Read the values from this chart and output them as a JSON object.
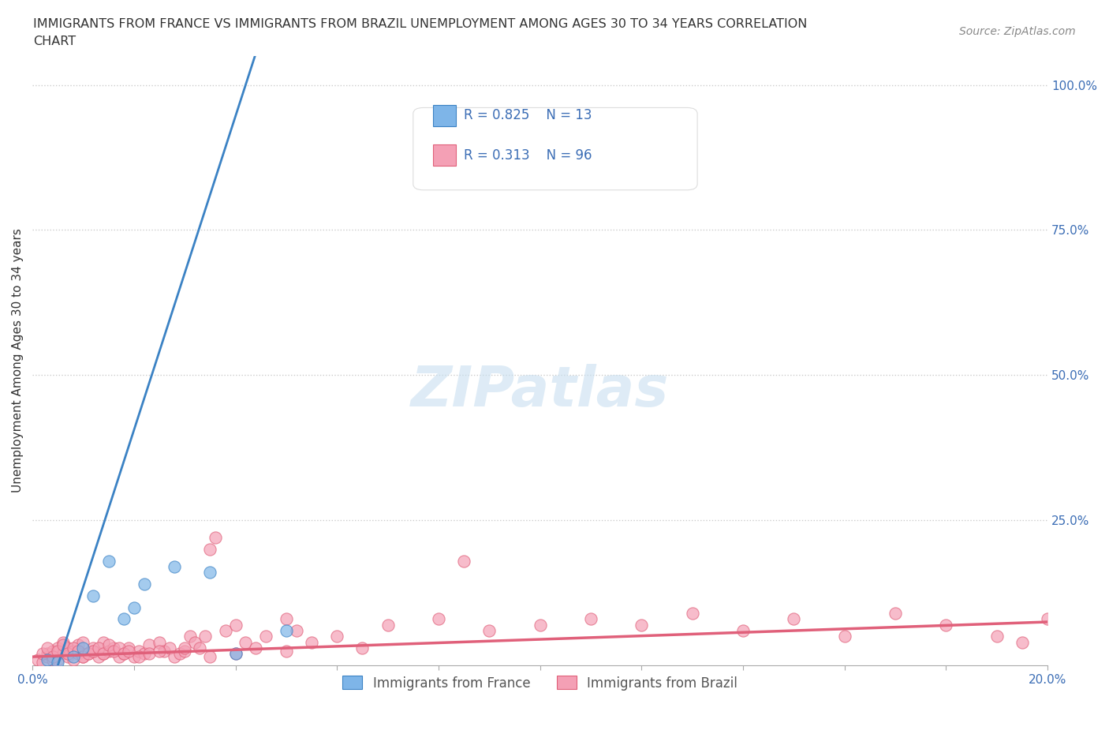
{
  "title_line1": "IMMIGRANTS FROM FRANCE VS IMMIGRANTS FROM BRAZIL UNEMPLOYMENT AMONG AGES 30 TO 34 YEARS CORRELATION",
  "title_line2": "CHART",
  "source_text": "Source: ZipAtlas.com",
  "xlabel": "",
  "ylabel": "Unemployment Among Ages 30 to 34 years",
  "xlim": [
    0.0,
    0.2
  ],
  "ylim": [
    0.0,
    1.05
  ],
  "xticks": [
    0.0,
    0.02,
    0.04,
    0.06,
    0.08,
    0.1,
    0.12,
    0.14,
    0.16,
    0.18,
    0.2
  ],
  "xticklabels": [
    "0.0%",
    "",
    "",
    "",
    "",
    "",
    "",
    "",
    "",
    "",
    "20.0%"
  ],
  "yticks": [
    0.0,
    0.25,
    0.5,
    0.75,
    1.0
  ],
  "yticklabels": [
    "",
    "25.0%",
    "50.0%",
    "75.0%",
    "100.0%"
  ],
  "france_color": "#7EB5E8",
  "france_color_line": "#3B82C4",
  "brazil_color": "#F4A0B5",
  "brazil_color_line": "#E0607A",
  "france_R": 0.825,
  "france_N": 13,
  "brazil_R": 0.313,
  "brazil_N": 96,
  "legend_R_color": "#3B6DB5",
  "background_color": "#ffffff",
  "watermark_text": "ZIPatlas",
  "france_scatter_x": [
    0.003,
    0.005,
    0.008,
    0.01,
    0.012,
    0.015,
    0.018,
    0.02,
    0.022,
    0.028,
    0.035,
    0.04,
    0.05
  ],
  "france_scatter_y": [
    0.01,
    0.005,
    0.015,
    0.03,
    0.12,
    0.18,
    0.08,
    0.1,
    0.14,
    0.17,
    0.16,
    0.02,
    0.06
  ],
  "brazil_scatter_x": [
    0.001,
    0.002,
    0.003,
    0.003,
    0.004,
    0.004,
    0.005,
    0.005,
    0.006,
    0.006,
    0.007,
    0.007,
    0.008,
    0.008,
    0.009,
    0.009,
    0.01,
    0.01,
    0.011,
    0.012,
    0.012,
    0.013,
    0.014,
    0.014,
    0.015,
    0.016,
    0.017,
    0.018,
    0.019,
    0.02,
    0.021,
    0.022,
    0.023,
    0.025,
    0.026,
    0.027,
    0.028,
    0.029,
    0.03,
    0.031,
    0.032,
    0.033,
    0.034,
    0.035,
    0.036,
    0.038,
    0.04,
    0.042,
    0.044,
    0.046,
    0.05,
    0.052,
    0.055,
    0.06,
    0.065,
    0.07,
    0.08,
    0.085,
    0.09,
    0.1,
    0.11,
    0.12,
    0.13,
    0.14,
    0.15,
    0.16,
    0.17,
    0.18,
    0.19,
    0.195,
    0.2,
    0.002,
    0.003,
    0.004,
    0.005,
    0.006,
    0.007,
    0.008,
    0.009,
    0.01,
    0.011,
    0.012,
    0.013,
    0.014,
    0.015,
    0.016,
    0.017,
    0.018,
    0.019,
    0.021,
    0.023,
    0.025,
    0.03,
    0.035,
    0.04,
    0.05
  ],
  "brazil_scatter_y": [
    0.01,
    0.005,
    0.015,
    0.02,
    0.01,
    0.025,
    0.03,
    0.01,
    0.02,
    0.04,
    0.015,
    0.03,
    0.025,
    0.01,
    0.02,
    0.035,
    0.015,
    0.04,
    0.02,
    0.025,
    0.03,
    0.015,
    0.02,
    0.04,
    0.025,
    0.03,
    0.015,
    0.02,
    0.03,
    0.015,
    0.025,
    0.02,
    0.035,
    0.04,
    0.025,
    0.03,
    0.015,
    0.02,
    0.025,
    0.05,
    0.04,
    0.03,
    0.05,
    0.2,
    0.22,
    0.06,
    0.07,
    0.04,
    0.03,
    0.05,
    0.08,
    0.06,
    0.04,
    0.05,
    0.03,
    0.07,
    0.08,
    0.18,
    0.06,
    0.07,
    0.08,
    0.07,
    0.09,
    0.06,
    0.08,
    0.05,
    0.09,
    0.07,
    0.05,
    0.04,
    0.08,
    0.02,
    0.03,
    0.015,
    0.025,
    0.035,
    0.02,
    0.03,
    0.025,
    0.015,
    0.02,
    0.025,
    0.03,
    0.02,
    0.035,
    0.025,
    0.03,
    0.02,
    0.025,
    0.015,
    0.02,
    0.025,
    0.03,
    0.015,
    0.02,
    0.025
  ]
}
